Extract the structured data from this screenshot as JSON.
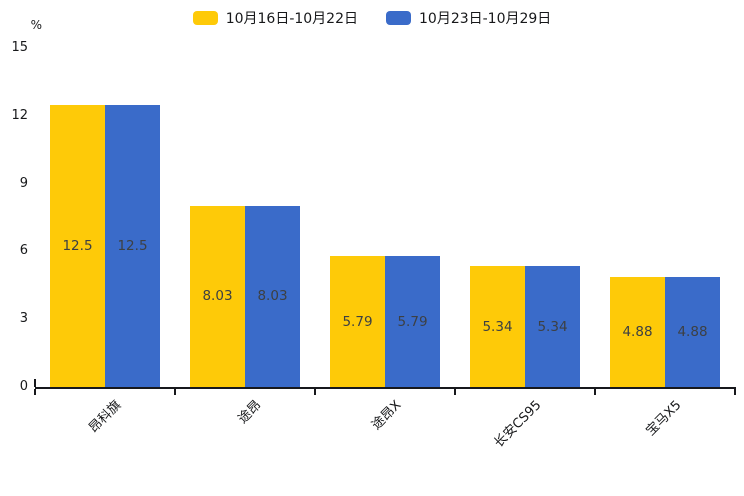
{
  "chart_data": {
    "type": "bar",
    "title": "",
    "categories": [
      "昂科旗",
      "途昂",
      "途昂X",
      "长安CS95",
      "宝马X5"
    ],
    "series": [
      {
        "name": "10月16日-10月22日",
        "color": "#FECA08",
        "values": [
          12.5,
          8.03,
          5.79,
          5.34,
          4.88
        ]
      },
      {
        "name": "10月23日-10月29日",
        "color": "#3A6BC9",
        "values": [
          12.5,
          8.03,
          5.79,
          5.34,
          4.88
        ]
      }
    ],
    "xlabel": "",
    "ylabel": "%",
    "ylim": [
      0,
      15
    ],
    "yticks": [
      0,
      3,
      6,
      9,
      12,
      15
    ],
    "legend_position": "top",
    "grid": false,
    "value_labels_visible": true,
    "axis_color": "#17181c",
    "value_label_color": "#3d4043"
  }
}
